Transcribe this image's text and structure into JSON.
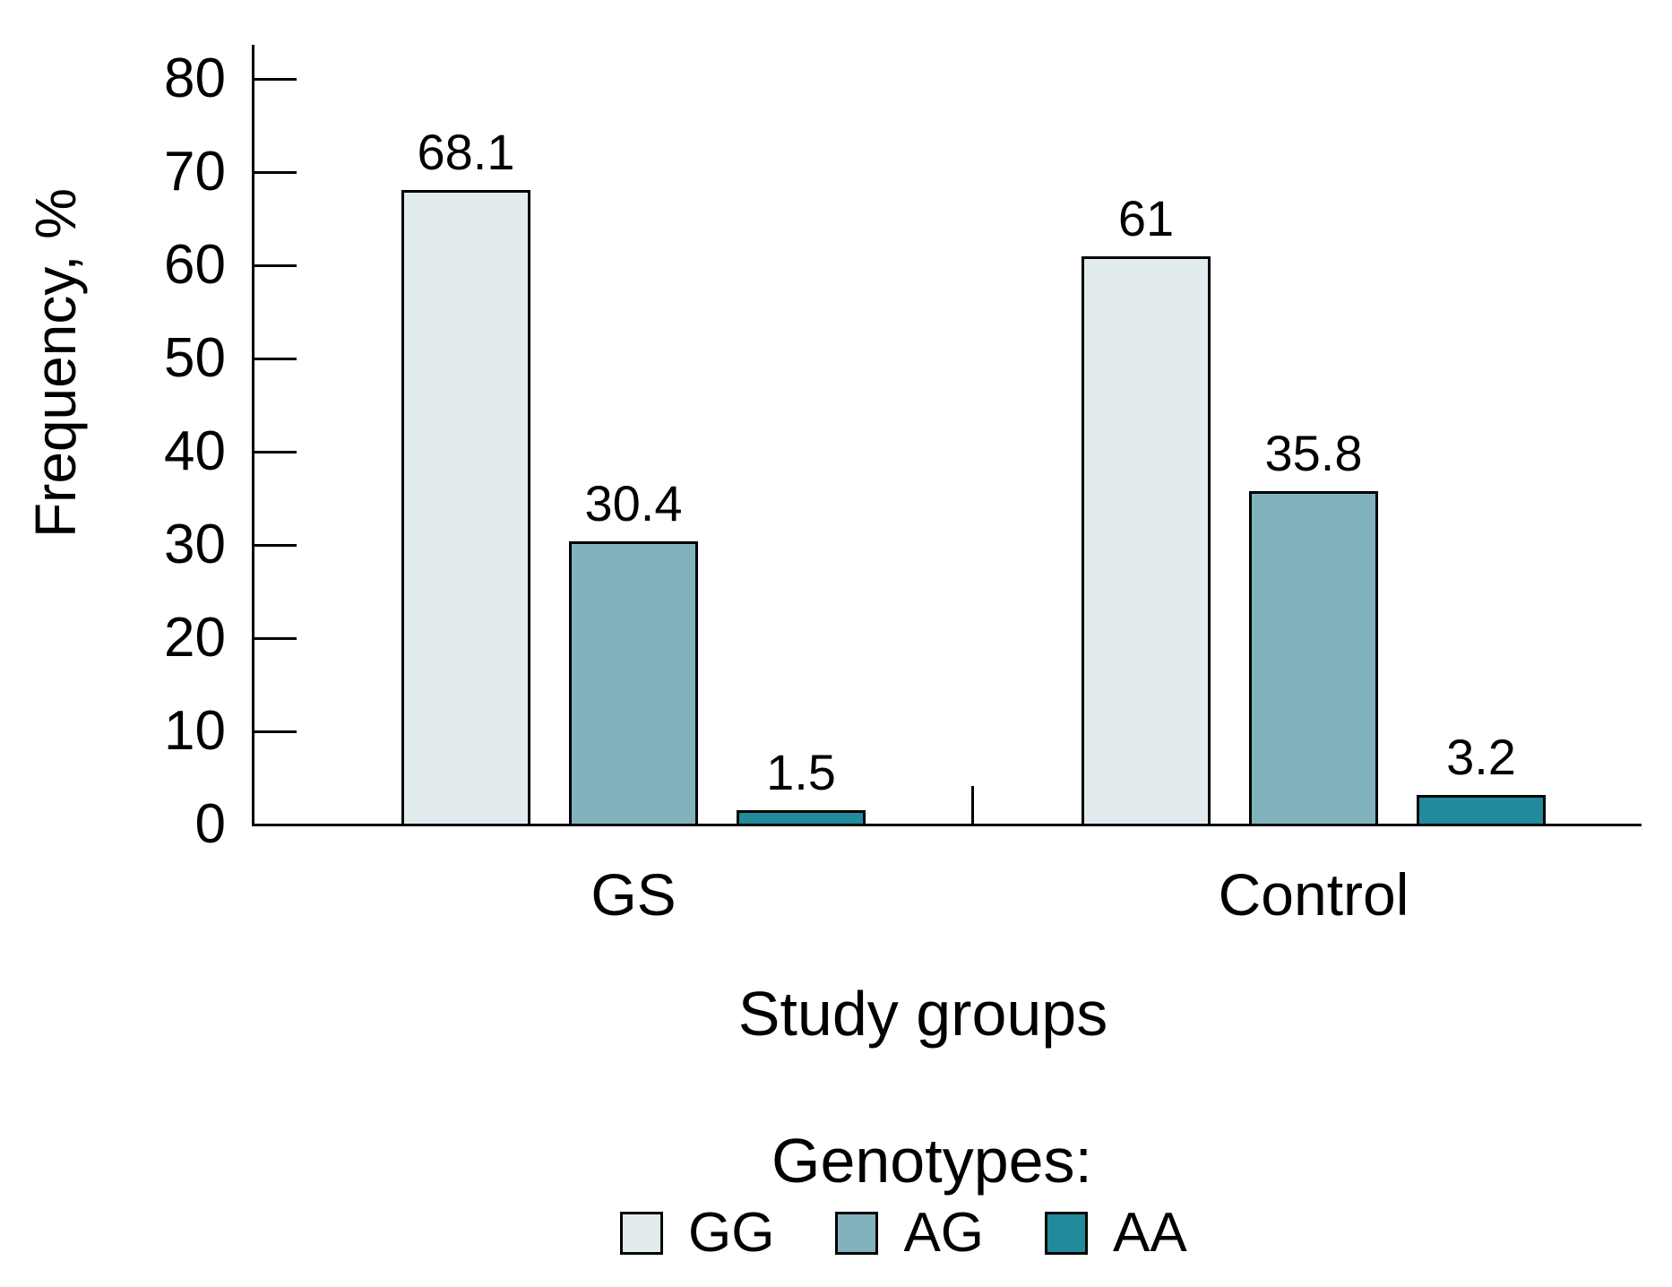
{
  "chart_data": {
    "type": "bar",
    "title": "",
    "ylabel": "Frequency, %",
    "xlabel": "Study groups",
    "ylim": [
      0,
      80
    ],
    "yticks": [
      0,
      10,
      20,
      30,
      40,
      50,
      60,
      70,
      80
    ],
    "categories": [
      "GS",
      "Control"
    ],
    "series": [
      {
        "name": "GG",
        "color": "#e2ebed",
        "values": [
          68.1,
          61
        ]
      },
      {
        "name": "AG",
        "color": "#82b3bd",
        "values": [
          30.4,
          35.8
        ]
      },
      {
        "name": "AA",
        "color": "#218b9b",
        "values": [
          1.5,
          3.2
        ]
      }
    ],
    "bar_value_labels": [
      [
        "68.1",
        "61"
      ],
      [
        "30.4",
        "35.8"
      ],
      [
        "1.5",
        "3.2"
      ]
    ],
    "legend_title": "Genotypes:",
    "legend_position": "bottom",
    "grid": false,
    "colors": {
      "axis": "#000000",
      "text": "#000000",
      "background": "#ffffff"
    }
  }
}
